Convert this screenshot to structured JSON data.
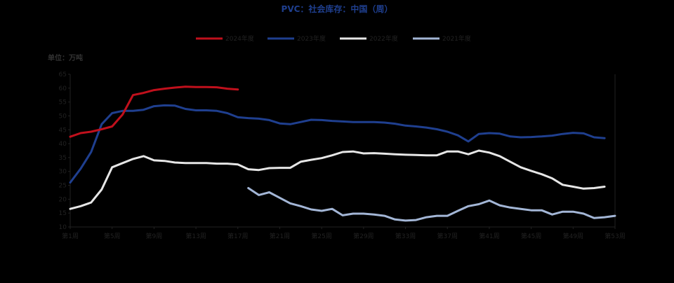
{
  "chart_data": {
    "type": "line",
    "title": "PVC：社会库存：中国（周）",
    "unit_label": "单位：万吨",
    "xlabel": "",
    "ylabel": "",
    "ylim": [
      10,
      65
    ],
    "y_ticks": [
      10,
      15,
      20,
      25,
      30,
      35,
      40,
      45,
      50,
      55,
      60,
      65
    ],
    "x_range": [
      1,
      53
    ],
    "x_ticks": [
      1,
      5,
      9,
      13,
      17,
      21,
      25,
      29,
      33,
      37,
      41,
      45,
      49,
      53
    ],
    "x_tick_labels": [
      "第1周",
      "第5周",
      "第9周",
      "第13周",
      "第17周",
      "第21周",
      "第25周",
      "第29周",
      "第33周",
      "第37周",
      "第41周",
      "第45周",
      "第49周",
      "第53周"
    ],
    "legend_position": "top-center",
    "grid": false,
    "series": [
      {
        "name": "2024年度",
        "color": "#c0101c",
        "x": [
          1,
          2,
          3,
          4,
          5,
          6,
          7,
          8,
          9,
          10,
          11,
          12,
          13,
          14,
          15,
          16,
          17
        ],
        "values": [
          42.5,
          43.8,
          44.3,
          45.2,
          46.2,
          50.5,
          57.5,
          58.3,
          59.3,
          59.8,
          60.2,
          60.5,
          60.4,
          60.4,
          60.3,
          59.8,
          59.5
        ]
      },
      {
        "name": "2023年度",
        "color": "#1f3f8f",
        "x": [
          1,
          2,
          3,
          4,
          5,
          6,
          7,
          8,
          9,
          10,
          11,
          12,
          13,
          14,
          15,
          16,
          17,
          18,
          19,
          20,
          21,
          22,
          23,
          24,
          25,
          26,
          27,
          28,
          29,
          30,
          31,
          32,
          33,
          34,
          35,
          36,
          37,
          38,
          39,
          40,
          41,
          42,
          43,
          44,
          45,
          46,
          47,
          48,
          49,
          50,
          51,
          52
        ],
        "values": [
          26,
          31,
          37,
          47,
          51,
          51.8,
          51.8,
          52.2,
          53.5,
          53.8,
          53.7,
          52.5,
          52.0,
          52.0,
          51.8,
          51.0,
          49.5,
          49.2,
          49.0,
          48.5,
          47.3,
          47.0,
          47.8,
          48.6,
          48.5,
          48.2,
          48.0,
          47.8,
          47.8,
          47.8,
          47.6,
          47.2,
          46.5,
          46.2,
          45.8,
          45.2,
          44.3,
          43.0,
          40.8,
          43.5,
          43.8,
          43.6,
          42.6,
          42.3,
          42.4,
          42.6,
          42.9,
          43.5,
          43.9,
          43.7,
          42.3,
          42.0
        ]
      },
      {
        "name": "2022年度",
        "color": "#e6e6e6",
        "x": [
          1,
          2,
          3,
          4,
          5,
          6,
          7,
          8,
          9,
          10,
          11,
          12,
          13,
          14,
          15,
          16,
          17,
          18,
          19,
          20,
          21,
          22,
          23,
          24,
          25,
          26,
          27,
          28,
          29,
          30,
          31,
          32,
          33,
          34,
          35,
          36,
          37,
          38,
          39,
          40,
          41,
          42,
          43,
          44,
          45,
          46,
          47,
          48,
          49,
          50,
          51,
          52
        ],
        "values": [
          16.5,
          17.5,
          18.8,
          23.5,
          31.5,
          33.0,
          34.5,
          35.5,
          34.0,
          33.8,
          33.2,
          33.0,
          33.0,
          33.0,
          32.8,
          32.8,
          32.5,
          30.8,
          30.5,
          31.2,
          31.3,
          31.3,
          33.5,
          34.2,
          34.8,
          35.8,
          37.0,
          37.2,
          36.5,
          36.6,
          36.4,
          36.2,
          36.0,
          35.9,
          35.8,
          35.8,
          37.2,
          37.2,
          36.2,
          37.5,
          36.8,
          35.5,
          33.5,
          31.5,
          30.2,
          29.0,
          27.5,
          25.2,
          24.5,
          23.8,
          24.0,
          24.5
        ]
      },
      {
        "name": "2021年度",
        "color": "#a3b6d6",
        "x": [
          18,
          19,
          20,
          21,
          22,
          23,
          24,
          25,
          26,
          27,
          28,
          29,
          30,
          31,
          32,
          33,
          34,
          35,
          36,
          37,
          38,
          39,
          40,
          41,
          42,
          43,
          44,
          45,
          46,
          47,
          48,
          49,
          50,
          51,
          52,
          53
        ],
        "values": [
          24,
          21.5,
          22.5,
          20.5,
          18.5,
          17.5,
          16.3,
          15.8,
          16.5,
          14.2,
          14.8,
          14.8,
          14.5,
          14.0,
          12.7,
          12.3,
          12.5,
          13.5,
          14.0,
          14.0,
          15.8,
          17.5,
          18.2,
          19.5,
          17.8,
          17.0,
          16.5,
          16.0,
          16.0,
          14.5,
          15.5,
          15.5,
          14.8,
          13.2,
          13.5,
          14.0
        ]
      }
    ]
  }
}
